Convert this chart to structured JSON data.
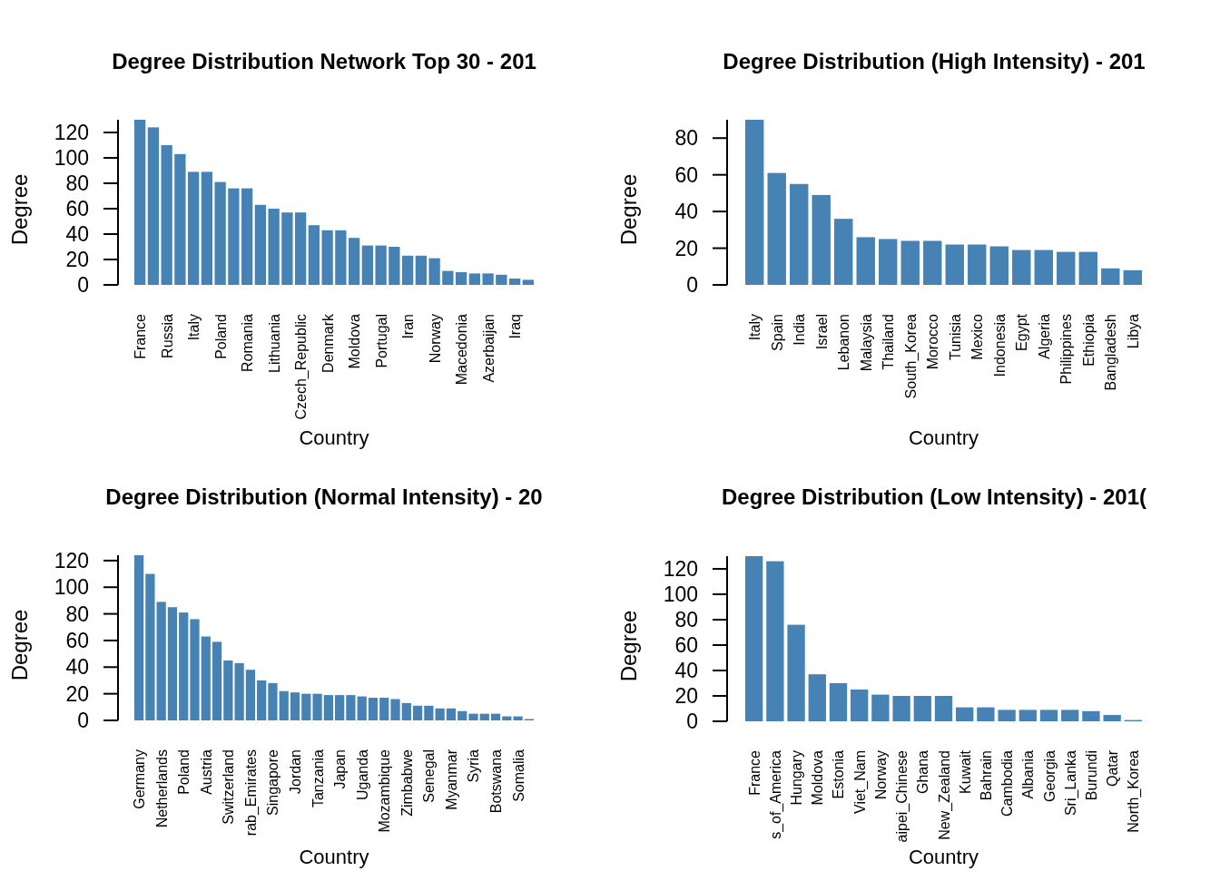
{
  "chart_data": [
    {
      "type": "bar",
      "title": "Degree Distribution Network Top 30 - 201",
      "xlabel": "Country",
      "ylabel": "Degree",
      "color": "#4682b4",
      "ylim": [
        0,
        130
      ],
      "yticks": [
        0,
        20,
        40,
        60,
        80,
        100,
        120
      ],
      "categories": [
        "France",
        null,
        "Russia",
        null,
        "Italy",
        null,
        "Poland",
        null,
        "Romania",
        null,
        "Lithuania",
        null,
        "Czech_Republic",
        null,
        "Denmark",
        null,
        "Moldova",
        null,
        "Portugal",
        null,
        "Iran",
        null,
        "Norway",
        null,
        "Macedonia",
        null,
        "Azerbaijan",
        null,
        "Iraq",
        null
      ],
      "values": [
        130,
        124,
        110,
        103,
        89,
        89,
        81,
        76,
        76,
        63,
        60,
        57,
        57,
        47,
        43,
        43,
        37,
        31,
        31,
        30,
        23,
        23,
        21,
        11,
        10,
        9,
        9,
        8,
        5,
        4
      ]
    },
    {
      "type": "bar",
      "title": "Degree Distribution (High Intensity) - 201",
      "xlabel": "Country",
      "ylabel": "Degree",
      "color": "#4682b4",
      "ylim": [
        0,
        90
      ],
      "yticks": [
        0,
        20,
        40,
        60,
        80
      ],
      "categories": [
        "Italy",
        "Spain",
        "India",
        "Israel",
        "Lebanon",
        "Malaysia",
        "Thailand",
        "South_Korea",
        "Morocco",
        "Tunisia",
        "Mexico",
        "Indonesia",
        "Egypt",
        "Algeria",
        "Philippines",
        "Ethiopia",
        "Bangladesh",
        "Libya"
      ],
      "values": [
        90,
        61,
        55,
        49,
        36,
        26,
        25,
        24,
        24,
        22,
        22,
        21,
        19,
        19,
        18,
        18,
        9,
        8
      ]
    },
    {
      "type": "bar",
      "title": "Degree Distribution (Normal Intensity) - 20",
      "xlabel": "Country",
      "ylabel": "Degree",
      "color": "#4682b4",
      "ylim": [
        0,
        124
      ],
      "yticks": [
        0,
        20,
        40,
        60,
        80,
        100,
        120
      ],
      "categories": [
        "Germany",
        null,
        "Netherlands",
        null,
        "Poland",
        null,
        "Austria",
        null,
        "Switzerland",
        null,
        "rab_Emirates",
        null,
        "Singapore",
        null,
        "Jordan",
        null,
        "Tanzania",
        null,
        "Japan",
        null,
        "Uganda",
        null,
        "Mozambique",
        null,
        "Zimbabwe",
        null,
        "Senegal",
        null,
        "Myanmar",
        null,
        "Syria",
        null,
        "Botswana",
        null,
        "Somalia",
        null
      ],
      "values": [
        124,
        110,
        89,
        85,
        81,
        76,
        63,
        59,
        45,
        43,
        38,
        30,
        28,
        22,
        21,
        20,
        20,
        19,
        19,
        19,
        18,
        17,
        17,
        16,
        13,
        11,
        11,
        9,
        9,
        7,
        5,
        5,
        5,
        3,
        3,
        1
      ]
    },
    {
      "type": "bar",
      "title": "Degree Distribution (Low Intensity) - 201(",
      "xlabel": "Country",
      "ylabel": "Degree",
      "color": "#4682b4",
      "ylim": [
        0,
        130
      ],
      "yticks": [
        0,
        20,
        40,
        60,
        80,
        100,
        120
      ],
      "categories": [
        "France",
        "s_of_America",
        "Hungary",
        "Moldova",
        "Estonia",
        "Viet_Nam",
        "Norway",
        "aipei_Chinese",
        "Ghana",
        "New_Zealand",
        "Kuwait",
        "Bahrain",
        "Cambodia",
        "Albania",
        "Georgia",
        "Sri_Lanka",
        "Burundi",
        "Qatar",
        "North_Korea"
      ],
      "values": [
        130,
        126,
        76,
        37,
        30,
        25,
        21,
        20,
        20,
        20,
        11,
        11,
        9,
        9,
        9,
        9,
        8,
        5,
        1
      ]
    }
  ]
}
